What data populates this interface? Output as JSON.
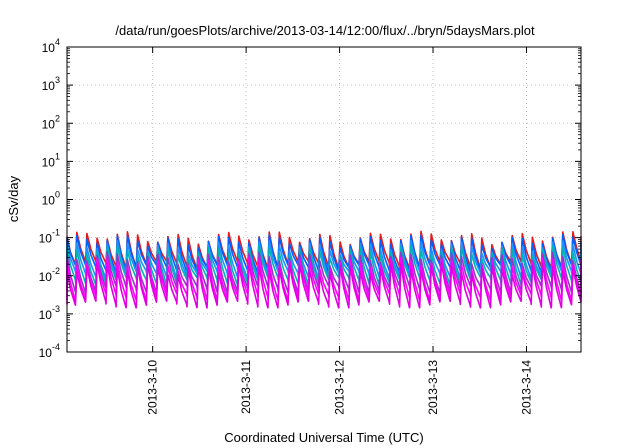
{
  "chart_data": {
    "type": "line",
    "title": "/data/run/goesPlots/archive/2013-03-14/12:00/flux/../bryn/5daysMars.plot",
    "xlabel": "Coordinated Universal Time (UTC)",
    "ylabel": "cSv/day",
    "yscale": "log",
    "ylim_exponents": [
      -4,
      4
    ],
    "y_ticks": [
      {
        "base": "10",
        "exp": "-4",
        "value": 0.0001
      },
      {
        "base": "10",
        "exp": "-3",
        "value": 0.001
      },
      {
        "base": "10",
        "exp": "-2",
        "value": 0.01
      },
      {
        "base": "10",
        "exp": "-1",
        "value": 0.1
      },
      {
        "base": "10",
        "exp": "0",
        "value": 1
      },
      {
        "base": "10",
        "exp": "1",
        "value": 10
      },
      {
        "base": "10",
        "exp": "2",
        "value": 100
      },
      {
        "base": "10",
        "exp": "3",
        "value": 1000
      },
      {
        "base": "10",
        "exp": "4",
        "value": 10000
      }
    ],
    "xlim": [
      "2013-03-09T02:00",
      "2013-03-14T14:00"
    ],
    "x_ticks": [
      {
        "label": "2013-3-10",
        "date": "2013-03-10T00:00"
      },
      {
        "label": "2013-3-11",
        "date": "2013-03-11T00:00"
      },
      {
        "label": "2013-3-12",
        "date": "2013-03-12T00:00"
      },
      {
        "label": "2013-3-13",
        "date": "2013-03-13T00:00"
      },
      {
        "label": "2013-3-14",
        "date": "2013-03-14T00:00"
      }
    ],
    "grid": true,
    "legend": "none",
    "orbit_period_hours": 2.6,
    "series": [
      {
        "color": "#e41a1c",
        "peak": 0.105,
        "trough": 0.02
      },
      {
        "color": "#0060ff",
        "peak": 0.085,
        "trough": 0.016
      },
      {
        "color": "#1e90ff",
        "peak": 0.06,
        "trough": 0.011
      },
      {
        "color": "#00b4b4",
        "peak": 0.045,
        "trough": 0.0075
      },
      {
        "color": "#9a32cd",
        "peak": 0.03,
        "trough": 0.0045
      },
      {
        "color": "#ff00ff",
        "peak": 0.022,
        "trough": 0.0028
      },
      {
        "color": "#e000e0",
        "peak": 0.016,
        "trough": 0.0018
      }
    ]
  }
}
